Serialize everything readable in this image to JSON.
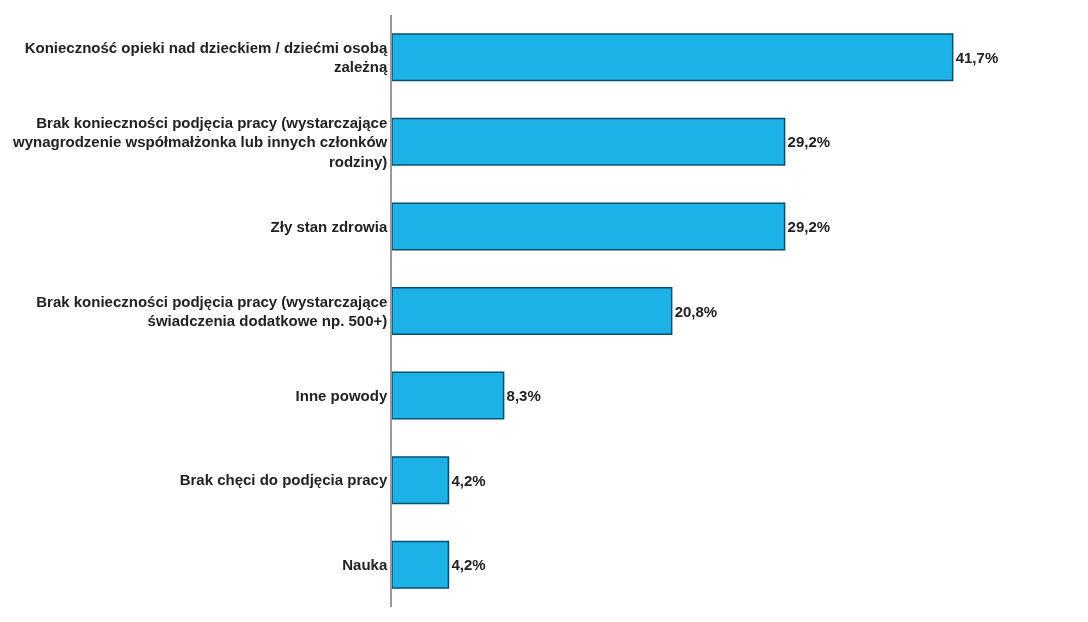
{
  "chart_data": {
    "type": "bar",
    "orientation": "horizontal",
    "tick_labels": "y",
    "categories": [
      "Konieczność opieki nad dzieckiem / dziećmi osobą zależną",
      "Brak konieczności podjęcia pracy (wystarczające wynagrodzenie współmałżonka lub innych członków rodziny)",
      "Zły stan zdrowia",
      "Brak konieczności podjęcia pracy (wystarczające świadczenia dodatkowe np. 500+)",
      "Inne powody",
      "Brak chęci do podjęcia pracy",
      "Nauka"
    ],
    "values": [
      41.7,
      29.2,
      29.2,
      20.8,
      8.3,
      4.2,
      4.2
    ],
    "value_labels": [
      "41,7%",
      "29,2%",
      "29,2%",
      "20,8%",
      "8,3%",
      "4,2%",
      "4,2%"
    ],
    "color": "#1cb2e8"
  }
}
